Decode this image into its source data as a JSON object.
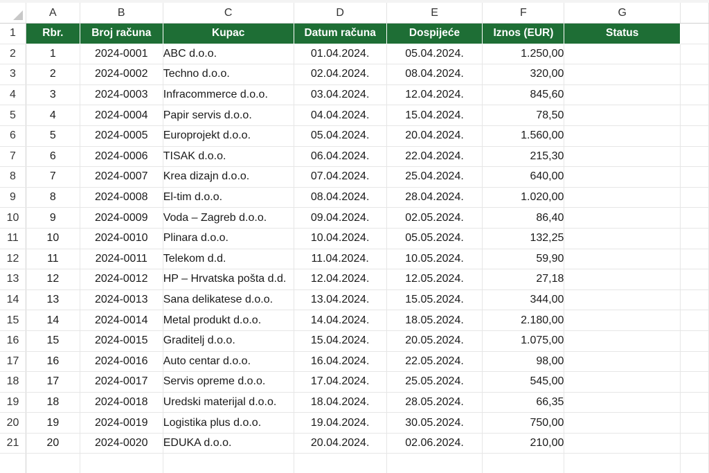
{
  "columns": [
    "A",
    "B",
    "C",
    "D",
    "E",
    "F",
    "G"
  ],
  "headers": {
    "rbr": "Rbr.",
    "broj": "Broj računa",
    "kupac": "Kupac",
    "datum": "Datum računa",
    "dospijece": "Dospijeće",
    "iznos": "Iznos (EUR)",
    "status": "Status"
  },
  "row_numbers": [
    "1",
    "2",
    "3",
    "4",
    "5",
    "6",
    "7",
    "8",
    "9",
    "10",
    "11",
    "12",
    "13",
    "14",
    "15",
    "16",
    "17",
    "18",
    "19",
    "20",
    "21"
  ],
  "rows": [
    {
      "rbr": "1",
      "broj": "2024-0001",
      "kupac": "ABC d.o.o.",
      "datum": "01.04.2024.",
      "dospijece": "05.04.2024.",
      "iznos": "1.250,00",
      "status": ""
    },
    {
      "rbr": "2",
      "broj": "2024-0002",
      "kupac": "Techno d.o.o.",
      "datum": "02.04.2024.",
      "dospijece": "08.04.2024.",
      "iznos": "320,00",
      "status": ""
    },
    {
      "rbr": "3",
      "broj": "2024-0003",
      "kupac": "Infracommerce d.o.o.",
      "datum": "03.04.2024.",
      "dospijece": "12.04.2024.",
      "iznos": "845,60",
      "status": ""
    },
    {
      "rbr": "4",
      "broj": "2024-0004",
      "kupac": "Papir servis d.o.o.",
      "datum": "04.04.2024.",
      "dospijece": "15.04.2024.",
      "iznos": "78,50",
      "status": ""
    },
    {
      "rbr": "5",
      "broj": "2024-0005",
      "kupac": "Europrojekt d.o.o.",
      "datum": "05.04.2024.",
      "dospijece": "20.04.2024.",
      "iznos": "1.560,00",
      "status": ""
    },
    {
      "rbr": "6",
      "broj": "2024-0006",
      "kupac": "TISAK d.o.o.",
      "datum": "06.04.2024.",
      "dospijece": "22.04.2024.",
      "iznos": "215,30",
      "status": ""
    },
    {
      "rbr": "7",
      "broj": "2024-0007",
      "kupac": "Krea dizajn d.o.o.",
      "datum": "07.04.2024.",
      "dospijece": "25.04.2024.",
      "iznos": "640,00",
      "status": ""
    },
    {
      "rbr": "8",
      "broj": "2024-0008",
      "kupac": "El-tim d.o.o.",
      "datum": "08.04.2024.",
      "dospijece": "28.04.2024.",
      "iznos": "1.020,00",
      "status": ""
    },
    {
      "rbr": "9",
      "broj": "2024-0009",
      "kupac": "Voda – Zagreb d.o.o.",
      "datum": "09.04.2024.",
      "dospijece": "02.05.2024.",
      "iznos": "86,40",
      "status": ""
    },
    {
      "rbr": "10",
      "broj": "2024-0010",
      "kupac": "Plinara d.o.o.",
      "datum": "10.04.2024.",
      "dospijece": "05.05.2024.",
      "iznos": "132,25",
      "status": ""
    },
    {
      "rbr": "11",
      "broj": "2024-0011",
      "kupac": "Telekom d.d.",
      "datum": "11.04.2024.",
      "dospijece": "10.05.2024.",
      "iznos": "59,90",
      "status": ""
    },
    {
      "rbr": "12",
      "broj": "2024-0012",
      "kupac": "HP – Hrvatska pošta d.d.",
      "datum": "12.04.2024.",
      "dospijece": "12.05.2024.",
      "iznos": "27,18",
      "status": ""
    },
    {
      "rbr": "13",
      "broj": "2024-0013",
      "kupac": "Sana delikatese d.o.o.",
      "datum": "13.04.2024.",
      "dospijece": "15.05.2024.",
      "iznos": "344,00",
      "status": ""
    },
    {
      "rbr": "14",
      "broj": "2024-0014",
      "kupac": "Metal produkt d.o.o.",
      "datum": "14.04.2024.",
      "dospijece": "18.05.2024.",
      "iznos": "2.180,00",
      "status": ""
    },
    {
      "rbr": "15",
      "broj": "2024-0015",
      "kupac": "Graditelj d.o.o.",
      "datum": "15.04.2024.",
      "dospijece": "20.05.2024.",
      "iznos": "1.075,00",
      "status": ""
    },
    {
      "rbr": "16",
      "broj": "2024-0016",
      "kupac": "Auto centar d.o.o.",
      "datum": "16.04.2024.",
      "dospijece": "22.05.2024.",
      "iznos": "98,00",
      "status": ""
    },
    {
      "rbr": "17",
      "broj": "2024-0017",
      "kupac": "Servis opreme d.o.o.",
      "datum": "17.04.2024.",
      "dospijece": "25.05.2024.",
      "iznos": "545,00",
      "status": ""
    },
    {
      "rbr": "18",
      "broj": "2024-0018",
      "kupac": "Uredski materijal d.o.o.",
      "datum": "18.04.2024.",
      "dospijece": "28.05.2024.",
      "iznos": "66,35",
      "status": ""
    },
    {
      "rbr": "19",
      "broj": "2024-0019",
      "kupac": "Logistika plus d.o.o.",
      "datum": "19.04.2024.",
      "dospijece": "30.05.2024.",
      "iznos": "750,00",
      "status": ""
    },
    {
      "rbr": "20",
      "broj": "2024-0020",
      "kupac": "EDUKA d.o.o.",
      "datum": "20.04.2024.",
      "dospijece": "02.06.2024.",
      "iznos": "210,00",
      "status": ""
    }
  ],
  "colors": {
    "header_fill": "#1e6e35",
    "header_text": "#ffffff",
    "gridline": "#e6e6e6"
  }
}
